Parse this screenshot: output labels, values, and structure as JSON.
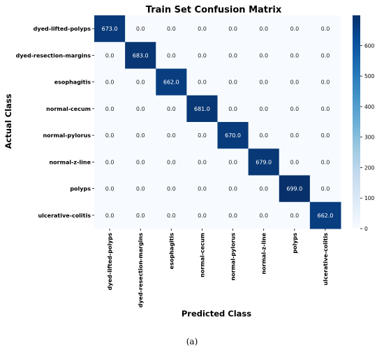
{
  "chart_data": {
    "type": "heatmap",
    "title": "Train Set Confusion Matrix",
    "xlabel": "Predicted Class",
    "ylabel": "Actual Class",
    "x_categories": [
      "dyed-lifted-polyps",
      "dyed-resection-margins",
      "esophagitis",
      "normal-cecum",
      "normal-pylorus",
      "normal-z-line",
      "polyps",
      "ulcerative-colitis"
    ],
    "y_categories": [
      "dyed-lifted-polyps",
      "dyed-resection-margins",
      "esophagitis",
      "normal-cecum",
      "normal-pylorus",
      "normal-z-line",
      "polyps",
      "ulcerative-colitis"
    ],
    "values": [
      [
        673,
        0,
        0,
        0,
        0,
        0,
        0,
        0
      ],
      [
        0,
        683,
        0,
        0,
        0,
        0,
        0,
        0
      ],
      [
        0,
        0,
        662,
        0,
        0,
        0,
        0,
        0
      ],
      [
        0,
        0,
        0,
        681,
        0,
        0,
        0,
        0
      ],
      [
        0,
        0,
        0,
        0,
        670,
        0,
        0,
        0
      ],
      [
        0,
        0,
        0,
        0,
        0,
        679,
        0,
        0
      ],
      [
        0,
        0,
        0,
        0,
        0,
        0,
        699,
        0
      ],
      [
        0,
        0,
        0,
        0,
        0,
        0,
        0,
        662
      ]
    ],
    "value_format": "one-decimal",
    "colormap": "Blues",
    "vmin": 0,
    "vmax": 699,
    "colorbar_ticks": [
      0,
      100,
      200,
      300,
      400,
      500,
      600
    ],
    "colors": {
      "low": "#f7fbff",
      "high": "#08306b",
      "text_dark": "#262626",
      "text_light": "#ffffff"
    }
  },
  "caption": "(a)"
}
